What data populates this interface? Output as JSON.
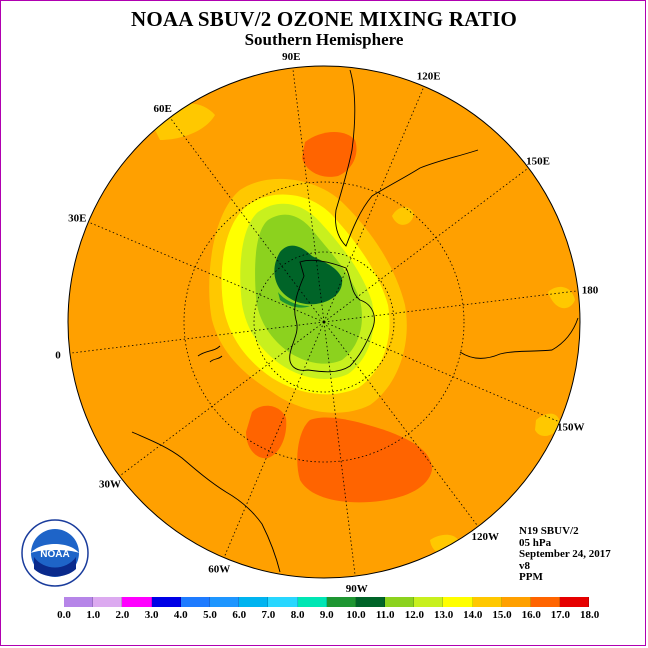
{
  "title": "NOAA SBUV/2 OZONE MIXING RATIO",
  "subtitle": "Southern Hemisphere",
  "longitude_labels": [
    "90W",
    "60W",
    "30W",
    "0",
    "30E",
    "60E",
    "90E",
    "120E",
    "150E",
    "180",
    "150W",
    "120W"
  ],
  "info": {
    "satellite": "N19 SBUV/2",
    "level": "05 hPa",
    "date": "September 24, 2017",
    "version": "v8",
    "units": "PPM"
  },
  "logo": {
    "text": "NOAA"
  },
  "colorbar": {
    "ticks": [
      "0.0",
      "1.0",
      "2.0",
      "3.0",
      "4.0",
      "5.0",
      "6.0",
      "7.0",
      "8.0",
      "9.0",
      "10.0",
      "11.0",
      "12.0",
      "13.0",
      "14.0",
      "15.0",
      "16.0",
      "17.0",
      "18.0"
    ],
    "colors": [
      "#b685e8",
      "#dcaaf0",
      "#ff00ff",
      "#0000e6",
      "#1e7bff",
      "#1e96ff",
      "#00b4f0",
      "#28d7ff",
      "#00e6b4",
      "#1e9632",
      "#006428",
      "#8cd21e",
      "#c8f01e",
      "#ffff00",
      "#ffc800",
      "#ffa000",
      "#ff6400",
      "#e60000",
      "#8c5a3c"
    ]
  },
  "map_data": {
    "projection": "south polar stereographic",
    "field": "ozone mixing ratio",
    "regions": [
      {
        "name": "background",
        "range": "14.0-15.0 PPM",
        "color": "#ffa000"
      },
      {
        "name": "maximum-south-america",
        "range": "15.0-16.0 PPM",
        "color": "#ff6400"
      },
      {
        "name": "maximum-indian-ocean",
        "range": "15.0-16.0 PPM",
        "color": "#ff6400"
      },
      {
        "name": "minimum-antarctica",
        "range": "9.0-10.0 PPM",
        "color": "#006428"
      }
    ]
  }
}
